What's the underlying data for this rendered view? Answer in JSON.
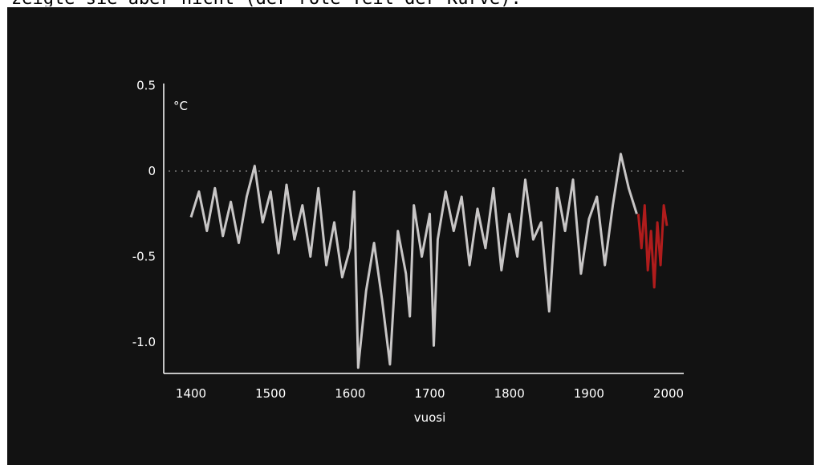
{
  "caption": "zeigte sie aber nicht (der rote Teil der Kurve).",
  "chart_data": {
    "type": "line",
    "xlabel": "vuosi",
    "ylabel": "°C",
    "xlim": [
      1380,
      2020
    ],
    "ylim": [
      -1.18,
      0.5
    ],
    "x_ticks": [
      1400,
      1500,
      1600,
      1700,
      1800,
      1900,
      2000
    ],
    "y_ticks": [
      0.5,
      0,
      -0.5,
      -1.0
    ],
    "y_tick_labels": [
      "0.5",
      "0",
      "-0.5",
      "-1.0"
    ],
    "reference_line": {
      "y": 0,
      "style": "dotted"
    },
    "colors": {
      "background": "#121212",
      "reconstruction": "#c8c6c6",
      "divergence": "#b01c1c",
      "axis": "#ffffff",
      "reference": "#777777"
    },
    "series": [
      {
        "x": [
          1400,
          1410,
          1420,
          1430,
          1440,
          1450,
          1460,
          1470,
          1480,
          1490,
          1500,
          1510,
          1520,
          1530,
          1540,
          1550,
          1560,
          1570,
          1580,
          1590,
          1600,
          1605,
          1610,
          1620,
          1630,
          1640,
          1650,
          1660,
          1670,
          1675,
          1680,
          1690,
          1700,
          1705,
          1710,
          1720,
          1730,
          1740,
          1750,
          1760,
          1770,
          1780,
          1790,
          1800,
          1810,
          1820,
          1830,
          1840,
          1850,
          1860,
          1870,
          1880,
          1890,
          1900,
          1910,
          1920,
          1930,
          1940,
          1950,
          1960
        ],
        "y": [
          -0.27,
          -0.12,
          -0.35,
          -0.1,
          -0.38,
          -0.18,
          -0.42,
          -0.15,
          0.03,
          -0.3,
          -0.12,
          -0.48,
          -0.08,
          -0.4,
          -0.2,
          -0.5,
          -0.1,
          -0.55,
          -0.3,
          -0.62,
          -0.45,
          -0.12,
          -1.15,
          -0.7,
          -0.42,
          -0.75,
          -1.13,
          -0.35,
          -0.6,
          -0.85,
          -0.2,
          -0.5,
          -0.25,
          -1.02,
          -0.4,
          -0.12,
          -0.35,
          -0.15,
          -0.55,
          -0.22,
          -0.45,
          -0.1,
          -0.58,
          -0.25,
          -0.5,
          -0.05,
          -0.4,
          -0.3,
          -0.82,
          -0.1,
          -0.35,
          -0.05,
          -0.6,
          -0.28,
          -0.15,
          -0.55,
          -0.2,
          0.1,
          -0.1,
          -0.25
        ]
      },
      {
        "x": [
          1962,
          1966,
          1970,
          1974,
          1978,
          1982,
          1986,
          1990,
          1994,
          1998
        ],
        "y": [
          -0.25,
          -0.45,
          -0.2,
          -0.58,
          -0.35,
          -0.68,
          -0.3,
          -0.55,
          -0.2,
          -0.32
        ]
      }
    ]
  }
}
